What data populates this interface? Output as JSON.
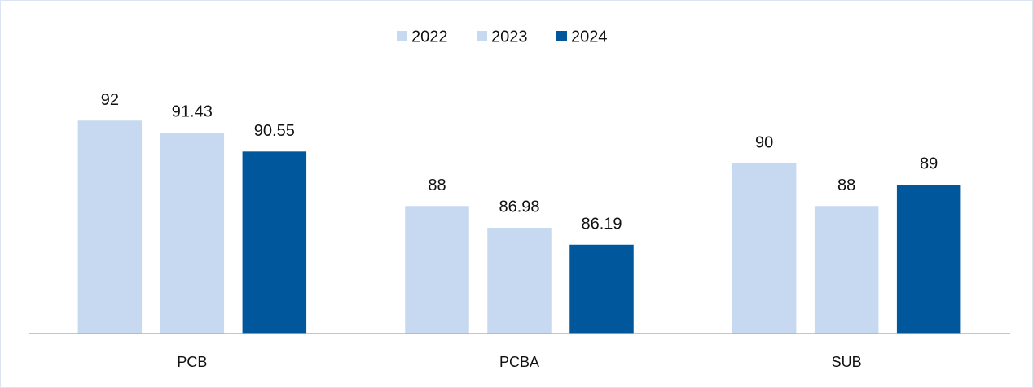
{
  "chart_data": {
    "type": "bar",
    "categories": [
      "PCB",
      "PCBA",
      "SUB"
    ],
    "series": [
      {
        "name": "2022",
        "color": "#c6d9f0",
        "values": [
          92,
          88,
          90
        ]
      },
      {
        "name": "2023",
        "color": "#c6d9f0",
        "values": [
          91.43,
          86.98,
          88
        ]
      },
      {
        "name": "2024",
        "color": "#00579c",
        "values": [
          90.55,
          86.19,
          89
        ]
      }
    ],
    "ylim": [
      82,
      94
    ],
    "legend": "top"
  }
}
